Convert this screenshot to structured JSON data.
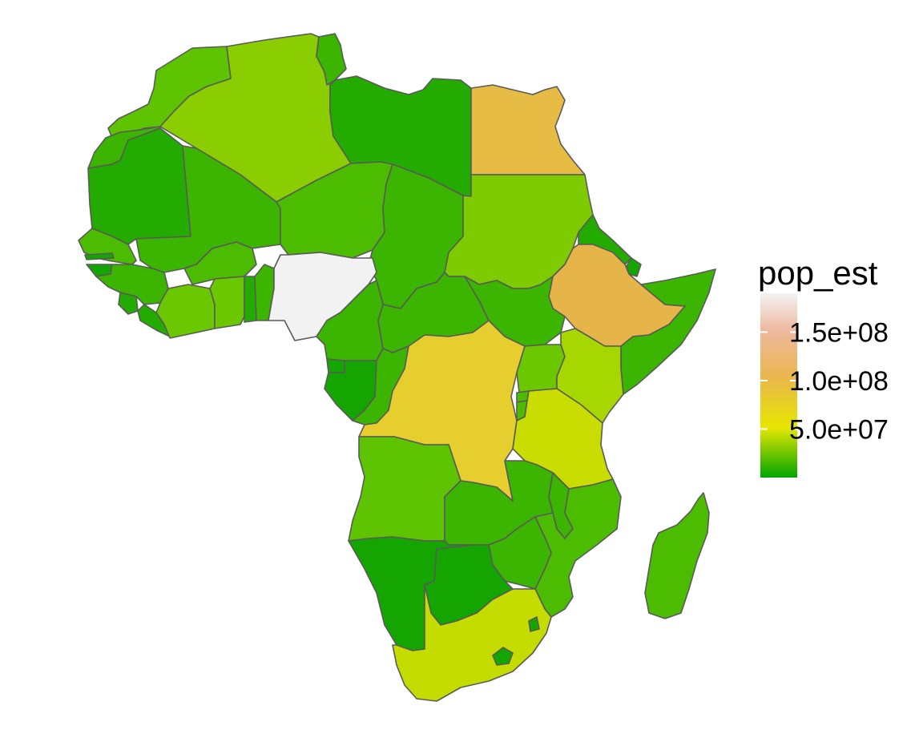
{
  "legend": {
    "title": "pop_est",
    "breaks": [
      {
        "value": 150000000,
        "label": "1.5e+08"
      },
      {
        "value": 100000000,
        "label": "1.0e+08"
      },
      {
        "value": 50000000,
        "label": "5.0e+07"
      }
    ],
    "min": 0,
    "max": 190000000,
    "gradient_stops": [
      "#00A600",
      "#E6E600",
      "#EAB64E",
      "#EEB99F",
      "#F2F2F2"
    ]
  },
  "colors": {
    "border": "#5a5a5a",
    "background": "#ffffff"
  }
}
